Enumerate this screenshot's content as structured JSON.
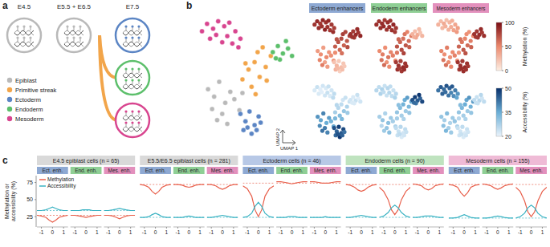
{
  "diagram": {
    "panel": "a",
    "stages": [
      "E4.5",
      "E5.5 + E6.5",
      "E7.5"
    ]
  },
  "chart_data": [
    {
      "type": "scatter",
      "panel": "b",
      "x_label": "UMAP 1",
      "y_label": "UMAP 2",
      "xlim": [
        0,
        10
      ],
      "ylim": [
        0,
        10
      ],
      "tick_labels": false,
      "series": [
        {
          "name": "Epiblast",
          "color": "#b9b9b9",
          "x": [
            1.2,
            1.8,
            2.3,
            2.9,
            3.4,
            1.6,
            2.6,
            3.8,
            4.3,
            2.1,
            3.1,
            4.6
          ],
          "values": [
            4.2,
            3.6,
            4.8,
            3.1,
            4.0,
            2.6,
            2.2,
            3.4,
            2.5,
            1.7,
            1.4,
            3.9
          ]
        },
        {
          "name": "Primitive streak",
          "color": "#f2a54a",
          "x": [
            4.6,
            5.2,
            5.8,
            6.3,
            6.9,
            7.4,
            5.5,
            6.1,
            4.9,
            7.0,
            5.9,
            6.6
          ],
          "values": [
            5.0,
            5.8,
            6.4,
            5.2,
            6.0,
            6.9,
            4.4,
            7.2,
            6.3,
            4.9,
            3.8,
            7.6
          ]
        },
        {
          "name": "Ectoderm",
          "color": "#5b85c4",
          "x": [
            4.4,
            4.9,
            5.3,
            5.8,
            6.2,
            4.7,
            5.5,
            6.0,
            5.1,
            6.4
          ],
          "values": [
            2.2,
            1.6,
            2.4,
            1.3,
            2.0,
            0.9,
            0.6,
            0.9,
            1.1,
            1.5
          ]
        },
        {
          "name": "Endoderm",
          "color": "#5cbf6b",
          "x": [
            7.6,
            8.1,
            8.6,
            9.1,
            9.5,
            8.3,
            8.9,
            7.9
          ],
          "values": [
            7.2,
            7.7,
            7.1,
            7.5,
            6.9,
            6.6,
            8.1,
            6.7
          ]
        },
        {
          "name": "Mesoderm",
          "color": "#d8458f",
          "x": [
            0.6,
            1.1,
            1.7,
            2.2,
            2.8,
            3.3,
            3.9,
            4.4,
            1.4,
            2.0,
            2.6,
            3.1,
            3.6,
            4.2
          ],
          "values": [
            8.9,
            9.5,
            9.1,
            9.7,
            9.3,
            9.6,
            8.9,
            8.3,
            8.3,
            8.6,
            8.0,
            8.5,
            7.9,
            7.6
          ]
        }
      ]
    },
    {
      "type": "scatter",
      "panels": [
        {
          "title": "Ectoderm enhancers",
          "color": "#8ea9d3",
          "methylation": [
            42,
            48,
            40,
            50,
            45,
            52,
            38,
            47,
            44,
            55,
            41,
            49,
            68,
            72,
            75,
            66,
            70,
            78,
            62,
            80,
            71,
            74,
            60,
            77,
            22,
            28,
            18,
            25,
            20,
            30,
            15,
            24,
            26,
            19,
            86,
            82,
            88,
            84,
            90,
            83,
            87,
            85,
            84,
            88,
            82,
            90,
            86,
            89,
            83,
            80,
            87,
            85,
            91,
            84,
            82,
            86
          ],
          "accessibility": [
            38,
            36,
            40,
            35,
            37,
            39,
            41,
            34,
            36,
            42,
            40,
            33,
            28,
            26,
            25,
            30,
            27,
            24,
            32,
            23,
            26,
            29,
            33,
            24,
            46,
            44,
            48,
            45,
            47,
            43,
            49,
            44,
            46,
            42,
            23,
            22,
            24,
            21,
            23,
            22,
            24,
            22,
            22,
            24,
            21,
            23,
            22,
            24,
            23,
            25,
            22,
            21,
            23,
            24,
            22,
            25
          ]
        },
        {
          "title": "Endoderm enhancers",
          "color": "#8fcf95",
          "methylation": [
            50,
            55,
            48,
            58,
            52,
            60,
            46,
            54,
            51,
            62,
            49,
            57,
            72,
            65,
            60,
            70,
            62,
            55,
            75,
            58,
            64,
            68,
            78,
            52,
            82,
            85,
            80,
            88,
            84,
            86,
            83,
            87,
            81,
            85,
            30,
            25,
            34,
            22,
            28,
            36,
            26,
            32,
            86,
            84,
            88,
            82,
            87,
            85,
            90,
            83,
            86,
            88,
            84,
            87,
            85,
            82
          ],
          "accessibility": [
            28,
            30,
            27,
            31,
            29,
            26,
            30,
            28,
            27,
            29,
            31,
            28,
            30,
            32,
            34,
            29,
            33,
            36,
            28,
            35,
            31,
            30,
            27,
            37,
            25,
            24,
            26,
            23,
            25,
            24,
            22,
            23,
            25,
            24,
            46,
            48,
            45,
            44,
            47,
            42,
            49,
            43,
            26,
            25,
            27,
            24,
            26,
            25,
            24,
            26,
            27,
            25,
            24,
            26,
            25,
            27
          ]
        },
        {
          "title": "Mesoderm enhancers",
          "color": "#e390bd",
          "methylation": [
            52,
            48,
            55,
            46,
            50,
            58,
            49,
            53,
            47,
            60,
            51,
            45,
            65,
            58,
            52,
            62,
            55,
            50,
            70,
            48,
            60,
            66,
            72,
            46,
            84,
            86,
            82,
            88,
            85,
            83,
            87,
            84,
            86,
            82,
            85,
            83,
            87,
            82,
            86,
            84,
            88,
            83,
            30,
            26,
            34,
            24,
            28,
            32,
            36,
            40,
            27,
            31,
            29,
            33,
            38,
            42
          ],
          "accessibility": [
            30,
            28,
            32,
            27,
            29,
            31,
            28,
            30,
            27,
            33,
            29,
            26,
            30,
            33,
            35,
            29,
            34,
            37,
            28,
            36,
            32,
            30,
            27,
            38,
            24,
            23,
            25,
            22,
            24,
            23,
            22,
            23,
            24,
            23,
            25,
            24,
            26,
            23,
            25,
            24,
            26,
            24,
            42,
            45,
            43,
            46,
            44,
            45,
            41,
            38,
            44,
            43,
            42,
            40,
            39,
            36
          ]
        }
      ],
      "methylation_scale": {
        "label": "Methylation (%)",
        "range": [
          0,
          100
        ],
        "ticks": [
          0,
          50,
          100
        ]
      },
      "accessibility_scale": {
        "label": "Accessibility (%)",
        "range": [
          20,
          50
        ],
        "ticks": [
          20,
          35,
          50
        ]
      }
    },
    {
      "type": "line",
      "panel": "c",
      "y_label": "Methylation or accessibility (%)",
      "x": [
        -1.4,
        -1,
        -0.6,
        -0.3,
        0,
        0.3,
        0.6,
        1,
        1.4
      ],
      "xlim": [
        -1.4,
        1.4
      ],
      "xticks": [
        -1,
        0,
        1
      ],
      "ylim": [
        10,
        85
      ],
      "yticks": [
        25,
        50,
        75
      ],
      "legend": "top-left",
      "series": [
        {
          "name": "Methylation",
          "color": "#e8604c"
        },
        {
          "name": "Accessibility",
          "color": "#3bb3c3"
        }
      ],
      "groups": [
        {
          "name": "Ect. enh.",
          "color": "#8ea9d3"
        },
        {
          "name": "End. enh.",
          "color": "#8fcf95"
        },
        {
          "name": "Mes. enh.",
          "color": "#e390bd"
        }
      ],
      "panels": [
        {
          "title": "E4.5 epiblast cells (n = 65)",
          "color": "#d9d9d9",
          "methylation": [
            [
              27,
              26,
              24,
              20,
              17,
              20,
              24,
              26,
              27
            ],
            [
              27,
              27,
              26,
              25,
              24,
              25,
              26,
              27,
              27
            ],
            [
              27,
              27,
              26,
              24,
              22,
              24,
              26,
              27,
              27
            ]
          ],
          "accessibility": [
            [
              34,
              34,
              35,
              37,
              39,
              37,
              35,
              34,
              34
            ],
            [
              34,
              34,
              34,
              35,
              35,
              35,
              34,
              34,
              34
            ],
            [
              34,
              34,
              35,
              36,
              37,
              36,
              35,
              34,
              34
            ]
          ],
          "reference": [
            27,
            34
          ]
        },
        {
          "title": "E5.5/E6.5 epiblast cells (n = 281)",
          "color": "#d9d9d9",
          "methylation": [
            [
              72,
              71,
              68,
              62,
              58,
              62,
              68,
              71,
              72
            ],
            [
              72,
              72,
              71,
              69,
              68,
              69,
              71,
              72,
              72
            ],
            [
              72,
              72,
              70,
              67,
              65,
              67,
              70,
              72,
              72
            ]
          ],
          "accessibility": [
            [
              24,
              24,
              25,
              28,
              30,
              28,
              25,
              24,
              24
            ],
            [
              24,
              24,
              24,
              25,
              26,
              25,
              24,
              24,
              24
            ],
            [
              24,
              24,
              25,
              26,
              27,
              26,
              25,
              24,
              24
            ]
          ],
          "reference": [
            72,
            24
          ]
        },
        {
          "title": "Ectoderm cells (n = 46)",
          "color": "#b7c8e6",
          "methylation": [
            [
              70,
              66,
              55,
              35,
              25,
              35,
              55,
              66,
              70
            ],
            [
              76,
              76,
              75,
              74,
              73,
              74,
              75,
              76,
              76
            ],
            [
              76,
              76,
              75,
              74,
              74,
              74,
              75,
              76,
              76
            ]
          ],
          "accessibility": [
            [
              24,
              25,
              30,
              40,
              46,
              40,
              30,
              25,
              24
            ],
            [
              24,
              24,
              24,
              25,
              25,
              25,
              24,
              24,
              24
            ],
            [
              24,
              24,
              24,
              24,
              25,
              24,
              24,
              24,
              24
            ]
          ],
          "reference": [
            74,
            24
          ]
        },
        {
          "title": "Endoderm cells (n = 90)",
          "color": "#bfe3bf",
          "methylation": [
            [
              72,
              71,
              68,
              64,
              62,
              64,
              68,
              71,
              72
            ],
            [
              68,
              62,
              50,
              35,
              28,
              35,
              50,
              62,
              68
            ],
            [
              73,
              72,
              70,
              66,
              64,
              66,
              70,
              72,
              73
            ]
          ],
          "accessibility": [
            [
              24,
              24,
              25,
              26,
              27,
              26,
              25,
              24,
              24
            ],
            [
              24,
              26,
              31,
              38,
              42,
              38,
              31,
              26,
              24
            ],
            [
              24,
              24,
              25,
              26,
              26,
              26,
              25,
              24,
              24
            ]
          ],
          "reference": [
            72,
            24
          ]
        },
        {
          "title": "Mesoderm cells (n = 155)",
          "color": "#efbbd6",
          "methylation": [
            [
              72,
              71,
              68,
              60,
              55,
              60,
              68,
              71,
              72
            ],
            [
              73,
              72,
              70,
              67,
              65,
              67,
              70,
              72,
              73
            ],
            [
              68,
              62,
              48,
              32,
              25,
              32,
              48,
              62,
              68
            ]
          ],
          "accessibility": [
            [
              23,
              23,
              24,
              26,
              28,
              26,
              24,
              23,
              23
            ],
            [
              23,
              23,
              24,
              25,
              26,
              25,
              24,
              23,
              23
            ],
            [
              23,
              25,
              30,
              38,
              42,
              38,
              30,
              25,
              23
            ]
          ],
          "reference": [
            72,
            23
          ]
        }
      ]
    }
  ]
}
